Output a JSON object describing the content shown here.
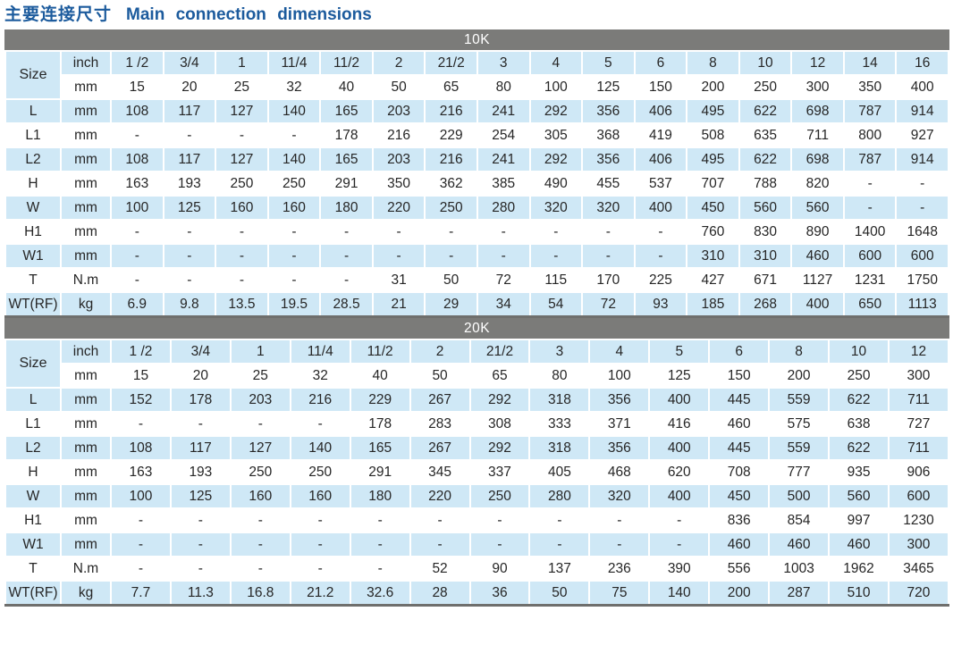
{
  "page": {
    "title_cn": "主要连接尺寸",
    "title_en": "Main connection dimensions"
  },
  "tables": [
    {
      "section": "10K",
      "size_label": "Size",
      "labels": {
        "inch": "inch",
        "mm": "mm"
      },
      "inch": [
        "1 /2",
        "3/4",
        "1",
        "11/4",
        "11/2",
        "2",
        "21/2",
        "3",
        "4",
        "5",
        "6",
        "8",
        "10",
        "12",
        "14",
        "16"
      ],
      "mm": [
        "15",
        "20",
        "25",
        "32",
        "40",
        "50",
        "65",
        "80",
        "100",
        "125",
        "150",
        "200",
        "250",
        "300",
        "350",
        "400"
      ],
      "rows": [
        {
          "label": "L",
          "unit": "mm",
          "values": [
            "108",
            "117",
            "127",
            "140",
            "165",
            "203",
            "216",
            "241",
            "292",
            "356",
            "406",
            "495",
            "622",
            "698",
            "787",
            "914"
          ]
        },
        {
          "label": "L1",
          "unit": "mm",
          "values": [
            "-",
            "-",
            "-",
            "-",
            "178",
            "216",
            "229",
            "254",
            "305",
            "368",
            "419",
            "508",
            "635",
            "711",
            "800",
            "927"
          ]
        },
        {
          "label": "L2",
          "unit": "mm",
          "values": [
            "108",
            "117",
            "127",
            "140",
            "165",
            "203",
            "216",
            "241",
            "292",
            "356",
            "406",
            "495",
            "622",
            "698",
            "787",
            "914"
          ]
        },
        {
          "label": "H",
          "unit": "mm",
          "values": [
            "163",
            "193",
            "250",
            "250",
            "291",
            "350",
            "362",
            "385",
            "490",
            "455",
            "537",
            "707",
            "788",
            "820",
            "-",
            "-"
          ]
        },
        {
          "label": "W",
          "unit": "mm",
          "values": [
            "100",
            "125",
            "160",
            "160",
            "180",
            "220",
            "250",
            "280",
            "320",
            "320",
            "400",
            "450",
            "560",
            "560",
            "-",
            "-"
          ]
        },
        {
          "label": "H1",
          "unit": "mm",
          "values": [
            "-",
            "-",
            "-",
            "-",
            "-",
            "-",
            "-",
            "-",
            "-",
            "-",
            "-",
            "760",
            "830",
            "890",
            "1400",
            "1648"
          ]
        },
        {
          "label": "W1",
          "unit": "mm",
          "values": [
            "-",
            "-",
            "-",
            "-",
            "-",
            "-",
            "-",
            "-",
            "-",
            "-",
            "-",
            "310",
            "310",
            "460",
            "600",
            "600"
          ]
        },
        {
          "label": "T",
          "unit": "N.m",
          "values": [
            "-",
            "-",
            "-",
            "-",
            "-",
            "31",
            "50",
            "72",
            "115",
            "170",
            "225",
            "427",
            "671",
            "1127",
            "1231",
            "1750"
          ]
        },
        {
          "label": "WT(RF)",
          "unit": "kg",
          "values": [
            "6.9",
            "9.8",
            "13.5",
            "19.5",
            "28.5",
            "21",
            "29",
            "34",
            "54",
            "72",
            "93",
            "185",
            "268",
            "400",
            "650",
            "1113"
          ]
        }
      ]
    },
    {
      "section": "20K",
      "size_label": "Size",
      "labels": {
        "inch": "inch",
        "mm": "mm"
      },
      "inch": [
        "1 /2",
        "3/4",
        "1",
        "11/4",
        "11/2",
        "2",
        "21/2",
        "3",
        "4",
        "5",
        "6",
        "8",
        "10",
        "12"
      ],
      "mm": [
        "15",
        "20",
        "25",
        "32",
        "40",
        "50",
        "65",
        "80",
        "100",
        "125",
        "150",
        "200",
        "250",
        "300"
      ],
      "rows": [
        {
          "label": "L",
          "unit": "mm",
          "values": [
            "152",
            "178",
            "203",
            "216",
            "229",
            "267",
            "292",
            "318",
            "356",
            "400",
            "445",
            "559",
            "622",
            "711"
          ]
        },
        {
          "label": "L1",
          "unit": "mm",
          "values": [
            "-",
            "-",
            "-",
            "-",
            "178",
            "283",
            "308",
            "333",
            "371",
            "416",
            "460",
            "575",
            "638",
            "727"
          ]
        },
        {
          "label": "L2",
          "unit": "mm",
          "values": [
            "108",
            "117",
            "127",
            "140",
            "165",
            "267",
            "292",
            "318",
            "356",
            "400",
            "445",
            "559",
            "622",
            "711"
          ]
        },
        {
          "label": "H",
          "unit": "mm",
          "values": [
            "163",
            "193",
            "250",
            "250",
            "291",
            "345",
            "337",
            "405",
            "468",
            "620",
            "708",
            "777",
            "935",
            "906"
          ]
        },
        {
          "label": "W",
          "unit": "mm",
          "values": [
            "100",
            "125",
            "160",
            "160",
            "180",
            "220",
            "250",
            "280",
            "320",
            "400",
            "450",
            "500",
            "560",
            "600"
          ]
        },
        {
          "label": "H1",
          "unit": "mm",
          "values": [
            "-",
            "-",
            "-",
            "-",
            "-",
            "-",
            "-",
            "-",
            "-",
            "-",
            "836",
            "854",
            "997",
            "1230"
          ]
        },
        {
          "label": "W1",
          "unit": "mm",
          "values": [
            "-",
            "-",
            "-",
            "-",
            "-",
            "-",
            "-",
            "-",
            "-",
            "-",
            "460",
            "460",
            "460",
            "300"
          ]
        },
        {
          "label": "T",
          "unit": "N.m",
          "values": [
            "-",
            "-",
            "-",
            "-",
            "-",
            "52",
            "90",
            "137",
            "236",
            "390",
            "556",
            "1003",
            "1962",
            "3465"
          ]
        },
        {
          "label": "WT(RF)",
          "unit": "kg",
          "values": [
            "7.7",
            "11.3",
            "16.8",
            "21.2",
            "32.6",
            "28",
            "36",
            "50",
            "75",
            "140",
            "200",
            "287",
            "510",
            "720"
          ]
        }
      ]
    }
  ],
  "colors": {
    "title_blue": "#1c5b9d",
    "section_bar_gray": "#7b7b79",
    "cell_blue": "#cfe8f6",
    "cell_white": "#ffffff",
    "text": "#262626"
  }
}
